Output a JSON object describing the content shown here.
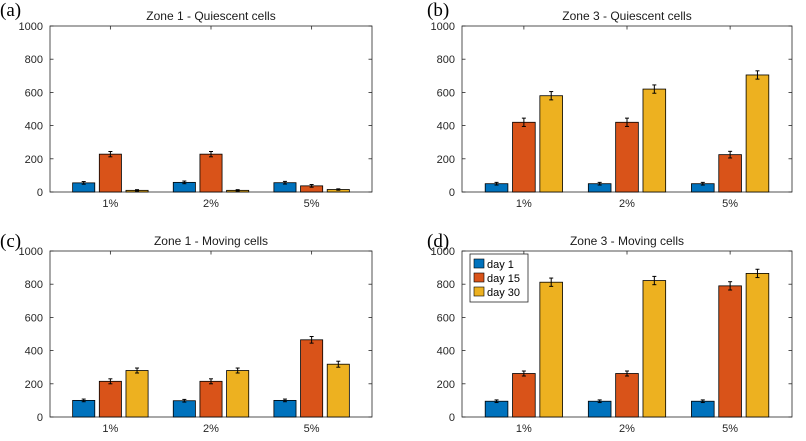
{
  "colors": {
    "day1": "#0072bd",
    "day15": "#d95319",
    "day30": "#edb120",
    "axis": "#262626",
    "errorbar": "#000000"
  },
  "chart_data": [
    {
      "type": "bar",
      "panel_label": "(a)",
      "title": "Zone 1 - Quiescent cells",
      "categories": [
        "1%",
        "2%",
        "5%"
      ],
      "ylim": [
        0,
        1000
      ],
      "yticks": [
        0,
        200,
        400,
        600,
        800,
        1000
      ],
      "series": [
        {
          "name": "day 1",
          "values": [
            55,
            58,
            56
          ],
          "errors": [
            8,
            8,
            8
          ]
        },
        {
          "name": "day 15",
          "values": [
            228,
            228,
            37
          ],
          "errors": [
            16,
            16,
            8
          ]
        },
        {
          "name": "day 30",
          "values": [
            10,
            10,
            15
          ],
          "errors": [
            4,
            4,
            4
          ]
        }
      ],
      "legend": null
    },
    {
      "type": "bar",
      "panel_label": "(b)",
      "title": "Zone 3 - Quiescent cells",
      "categories": [
        "1%",
        "2%",
        "5%"
      ],
      "ylim": [
        0,
        1000
      ],
      "yticks": [
        0,
        200,
        400,
        600,
        800,
        1000
      ],
      "series": [
        {
          "name": "day 1",
          "values": [
            50,
            50,
            50
          ],
          "errors": [
            8,
            8,
            8
          ]
        },
        {
          "name": "day 15",
          "values": [
            420,
            420,
            225
          ],
          "errors": [
            25,
            25,
            20
          ]
        },
        {
          "name": "day 30",
          "values": [
            580,
            620,
            705
          ],
          "errors": [
            25,
            25,
            25
          ]
        }
      ],
      "legend": null
    },
    {
      "type": "bar",
      "panel_label": "(c)",
      "title": "Zone 1 - Moving cells",
      "categories": [
        "1%",
        "2%",
        "5%"
      ],
      "ylim": [
        0,
        1000
      ],
      "yticks": [
        0,
        200,
        400,
        600,
        800,
        1000
      ],
      "series": [
        {
          "name": "day 1",
          "values": [
            100,
            98,
            100
          ],
          "errors": [
            8,
            8,
            8
          ]
        },
        {
          "name": "day 15",
          "values": [
            215,
            215,
            465
          ],
          "errors": [
            15,
            15,
            20
          ]
        },
        {
          "name": "day 30",
          "values": [
            280,
            280,
            318
          ],
          "errors": [
            15,
            15,
            18
          ]
        }
      ],
      "legend": null
    },
    {
      "type": "bar",
      "panel_label": "(d)",
      "title": "Zone 3 - Moving cells",
      "categories": [
        "1%",
        "2%",
        "5%"
      ],
      "ylim": [
        0,
        1000
      ],
      "yticks": [
        0,
        200,
        400,
        600,
        800,
        1000
      ],
      "series": [
        {
          "name": "day 1",
          "values": [
            95,
            95,
            95
          ],
          "errors": [
            8,
            8,
            8
          ]
        },
        {
          "name": "day 15",
          "values": [
            262,
            262,
            790
          ],
          "errors": [
            15,
            15,
            25
          ]
        },
        {
          "name": "day 30",
          "values": [
            812,
            822,
            865
          ],
          "errors": [
            25,
            25,
            25
          ]
        }
      ],
      "legend": {
        "placement": "top-left",
        "entries": [
          "day 1",
          "day 15",
          "day 30"
        ]
      }
    }
  ]
}
